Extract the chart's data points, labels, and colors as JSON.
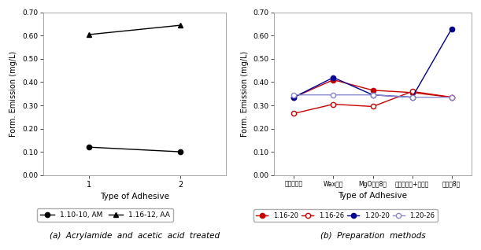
{
  "left_chart": {
    "x": [
      1,
      2
    ],
    "series": [
      {
        "label": "1.10-10, AM",
        "y": [
          0.12,
          0.1
        ],
        "color": "#000000",
        "marker": "o",
        "markerfacecolor": "#000000",
        "linestyle": "-"
      },
      {
        "label": "1.16-12, AA",
        "y": [
          0.605,
          0.645
        ],
        "color": "#000000",
        "marker": "^",
        "markerfacecolor": "#000000",
        "linestyle": "-"
      }
    ],
    "ylabel": "Form. Emission (mg/L)",
    "xlabel": "Type of Adhesive",
    "ylim": [
      0.0,
      0.7
    ],
    "yticks": [
      0.0,
      0.1,
      0.2,
      0.3,
      0.4,
      0.5,
      0.6,
      0.7
    ],
    "xticks": [
      1,
      2
    ],
    "caption": "(a)  Acrylamide  and  acetic  acid  treated"
  },
  "right_chart": {
    "x_labels": [
      "정치여시료",
      "Wax첨가",
      "MgO스쳊8가",
      "폴리에틸렌+자아소",
      "효소쳊8가"
    ],
    "series": [
      {
        "label": "1.16-20",
        "y": [
          0.335,
          0.41,
          0.365,
          0.355,
          0.335
        ],
        "color": "#cc0000",
        "marker": "o",
        "markerfacecolor": "#cc0000",
        "linestyle": "-"
      },
      {
        "label": "1.16-26",
        "y": [
          0.265,
          0.305,
          0.295,
          0.36,
          0.335
        ],
        "color": "#cc0000",
        "marker": "o",
        "markerfacecolor": "#ffffff",
        "linestyle": "-"
      },
      {
        "label": "1.20-20",
        "y": [
          0.335,
          0.42,
          0.345,
          0.335,
          0.63
        ],
        "color": "#000099",
        "marker": "o",
        "markerfacecolor": "#000099",
        "linestyle": "-"
      },
      {
        "label": "1.20-26",
        "y": [
          0.345,
          0.345,
          0.345,
          0.335,
          0.335
        ],
        "color": "#8888cc",
        "marker": "o",
        "markerfacecolor": "#ffffff",
        "linestyle": "-"
      }
    ],
    "ylabel": "Form. Emission (mg/L)",
    "xlabel": "Type of Adhesive",
    "ylim": [
      0.0,
      0.7
    ],
    "yticks": [
      0.0,
      0.1,
      0.2,
      0.3,
      0.4,
      0.5,
      0.6,
      0.7
    ],
    "caption": "(b)  Preparation  methods"
  }
}
